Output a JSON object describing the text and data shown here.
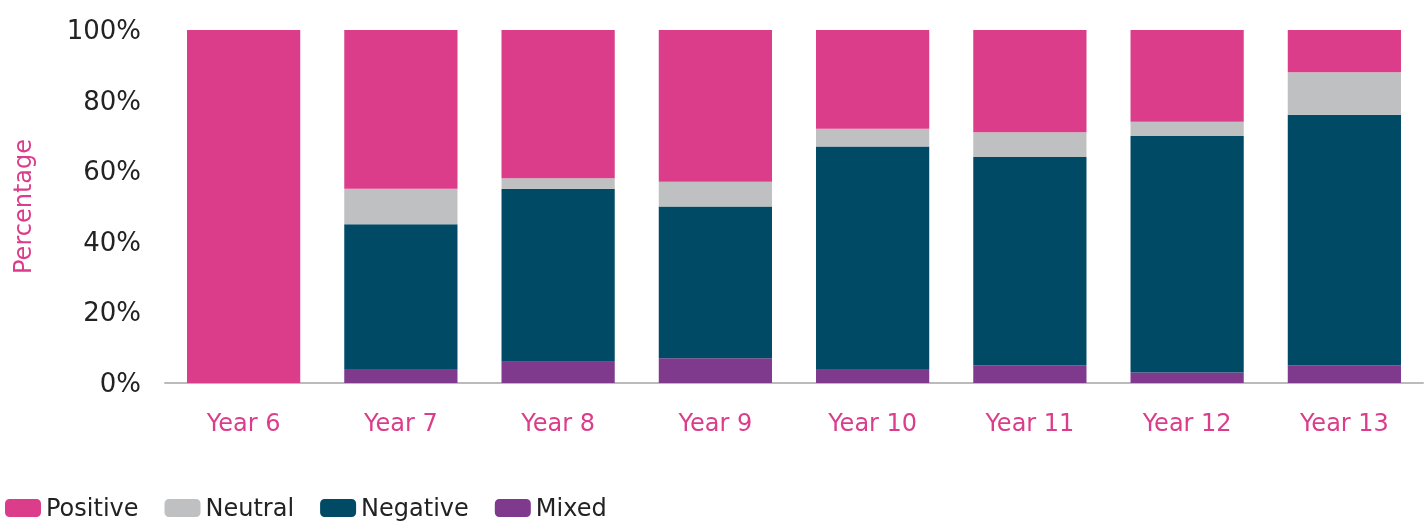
{
  "chart_data": {
    "type": "bar",
    "stacked": true,
    "ylabel": "Percentage",
    "categories": [
      "Year 6",
      "Year 7",
      "Year 8",
      "Year 9",
      "Year 10",
      "Year 11",
      "Year 12",
      "Year 13"
    ],
    "series": [
      {
        "name": "Mixed",
        "color": "#7f3a8e",
        "values": [
          0,
          4,
          6,
          7,
          4,
          5,
          3,
          5
        ]
      },
      {
        "name": "Negative",
        "color": "#004a66",
        "values": [
          0,
          41,
          49,
          43,
          63,
          59,
          67,
          71
        ]
      },
      {
        "name": "Neutral",
        "color": "#bfc0c2",
        "values": [
          0,
          10,
          3,
          7,
          5,
          7,
          4,
          12
        ]
      },
      {
        "name": "Positive",
        "color": "#db3d8a",
        "values": [
          100,
          45,
          42,
          43,
          28,
          29,
          26,
          12
        ]
      }
    ],
    "ylim": [
      0,
      100
    ],
    "yticks": [
      {
        "value": 0,
        "label": "0%"
      },
      {
        "value": 20,
        "label": "20%"
      },
      {
        "value": 40,
        "label": "40%"
      },
      {
        "value": 60,
        "label": "60%"
      },
      {
        "value": 80,
        "label": "80%"
      },
      {
        "value": 100,
        "label": "100%"
      }
    ],
    "grid": false,
    "legend": "bottom left"
  }
}
